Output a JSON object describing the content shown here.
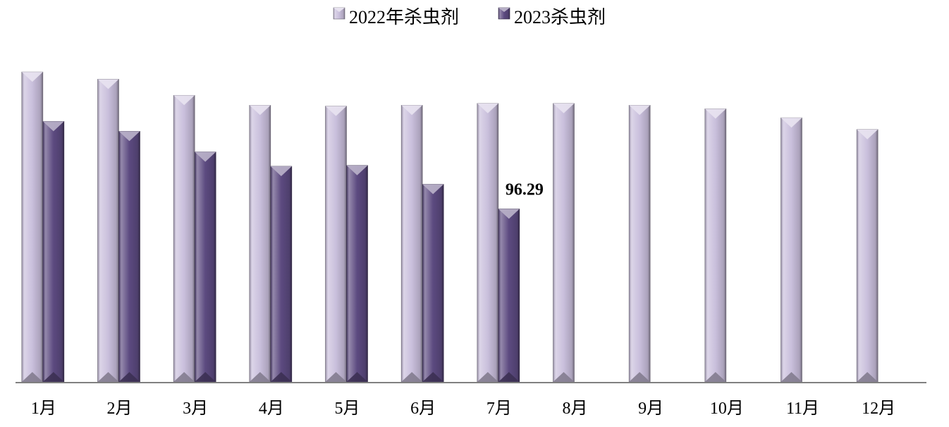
{
  "colors": {
    "series_2022": "#c9bfdc",
    "series_2023": "#5c4a80",
    "axis": "#808080"
  },
  "chart_data": {
    "type": "bar",
    "categories": [
      "1月",
      "2月",
      "3月",
      "4月",
      "5月",
      "6月",
      "7月",
      "8月",
      "9月",
      "10月",
      "11月",
      "12月"
    ],
    "series": [
      {
        "name": "2022年杀虫剂",
        "values": [
          172.5,
          168.5,
          159.5,
          154,
          153.5,
          154,
          155,
          155,
          154,
          152,
          147,
          140.5
        ]
      },
      {
        "name": "2023杀虫剂",
        "values": [
          145,
          139.5,
          128,
          120,
          120.5,
          110,
          96.29,
          null,
          null,
          null,
          null,
          null
        ]
      }
    ],
    "data_labels": [
      {
        "series": 1,
        "category": 6,
        "text": "96.29"
      }
    ],
    "ylim": [
      -0.5,
      0
    ],
    "legend_position": "top",
    "grid": false
  }
}
